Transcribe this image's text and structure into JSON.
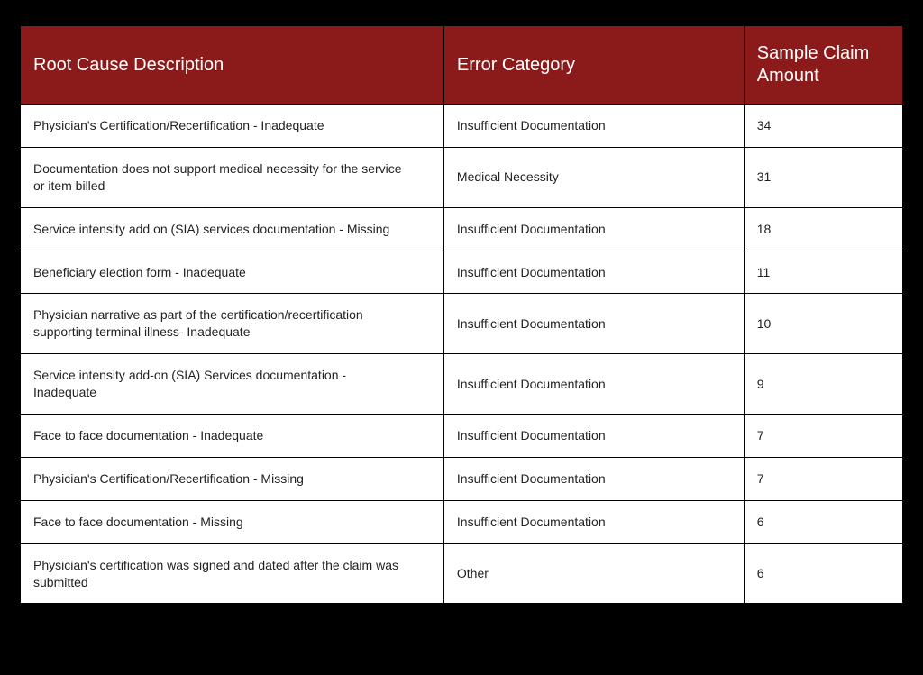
{
  "table": {
    "header_bg": "#8b1a1a",
    "header_fg": "#ffffff",
    "body_bg": "#ffffff",
    "border_color": "#000000",
    "page_bg": "#000000",
    "header_fontsize": 20,
    "cell_fontsize": 14,
    "columns": [
      {
        "label": "Root Cause Description",
        "width_pct": 48
      },
      {
        "label": "Error Category",
        "width_pct": 34
      },
      {
        "label": "Sample Claim Amount",
        "width_pct": 18
      }
    ],
    "rows": [
      {
        "desc": "Physician's Certification/Recertification - Inadequate",
        "category": "Insufficient Documentation",
        "amount": "34"
      },
      {
        "desc": "Documentation does not support medical necessity for the service or item billed",
        "category": "Medical Necessity",
        "amount": "31"
      },
      {
        "desc": "Service intensity add on (SIA) services documentation - Missing",
        "category": "Insufficient Documentation",
        "amount": "18"
      },
      {
        "desc": "Beneficiary election form - Inadequate",
        "category": "Insufficient Documentation",
        "amount": "11"
      },
      {
        "desc": "Physician narrative as part of the certification/recertification supporting terminal illness- Inadequate",
        "category": "Insufficient Documentation",
        "amount": "10"
      },
      {
        "desc": "Service intensity add-on (SIA) Services documentation - Inadequate",
        "category": "Insufficient Documentation",
        "amount": "9"
      },
      {
        "desc": "Face to face documentation - Inadequate",
        "category": "Insufficient Documentation",
        "amount": "7"
      },
      {
        "desc": "Physician's Certification/Recertification - Missing",
        "category": "Insufficient Documentation",
        "amount": "7"
      },
      {
        "desc": "Face to face documentation - Missing",
        "category": "Insufficient Documentation",
        "amount": "6"
      },
      {
        "desc": "Physician's certification was signed and dated after the claim was submitted",
        "category": "Other",
        "amount": "6"
      }
    ]
  }
}
